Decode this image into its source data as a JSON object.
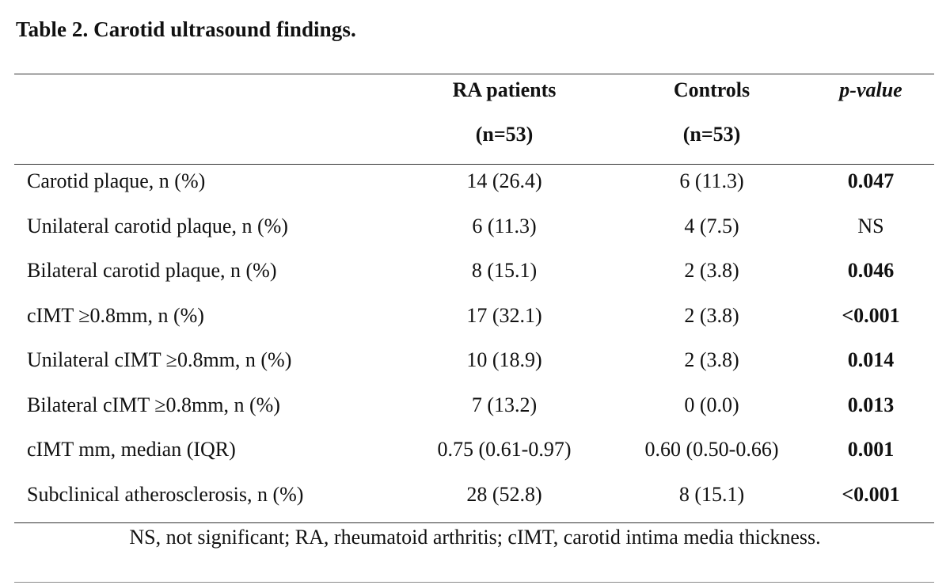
{
  "table": {
    "title": "Table 2. Carotid ultrasound findings.",
    "columns": [
      {
        "line1": "RA patients",
        "line2": "(n=53)"
      },
      {
        "line1": "Controls",
        "line2": "(n=53)"
      },
      {
        "line1": "p-value",
        "line2": ""
      }
    ],
    "rows": [
      {
        "label": "Carotid plaque, n (%)",
        "ra": "14 (26.4)",
        "controls": "6 (11.3)",
        "p": "0.047",
        "p_bold": true
      },
      {
        "label": "Unilateral carotid plaque, n (%)",
        "ra": "6 (11.3)",
        "controls": "4 (7.5)",
        "p": "NS",
        "p_bold": false
      },
      {
        "label": "Bilateral carotid plaque, n (%)",
        "ra": "8 (15.1)",
        "controls": "2 (3.8)",
        "p": "0.046",
        "p_bold": true
      },
      {
        "label": "cIMT ≥0.8mm, n (%)",
        "ra": "17 (32.1)",
        "controls": "2 (3.8)",
        "p": "<0.001",
        "p_bold": true
      },
      {
        "label": "Unilateral cIMT ≥0.8mm, n (%)",
        "ra": "10 (18.9)",
        "controls": "2 (3.8)",
        "p": "0.014",
        "p_bold": true
      },
      {
        "label": "Bilateral cIMT ≥0.8mm, n (%)",
        "ra": "7 (13.2)",
        "controls": "0 (0.0)",
        "p": "0.013",
        "p_bold": true
      },
      {
        "label": "cIMT mm, median (IQR)",
        "ra": "0.75 (0.61-0.97)",
        "controls": "0.60 (0.50-0.66)",
        "p": "0.001",
        "p_bold": true
      },
      {
        "label": "Subclinical atherosclerosis, n (%)",
        "ra": "28 (52.8)",
        "controls": "8 (15.1)",
        "p": "<0.001",
        "p_bold": true
      }
    ],
    "footnote": "NS, not significant; RA, rheumatoid arthritis; cIMT, carotid intima media thickness."
  }
}
